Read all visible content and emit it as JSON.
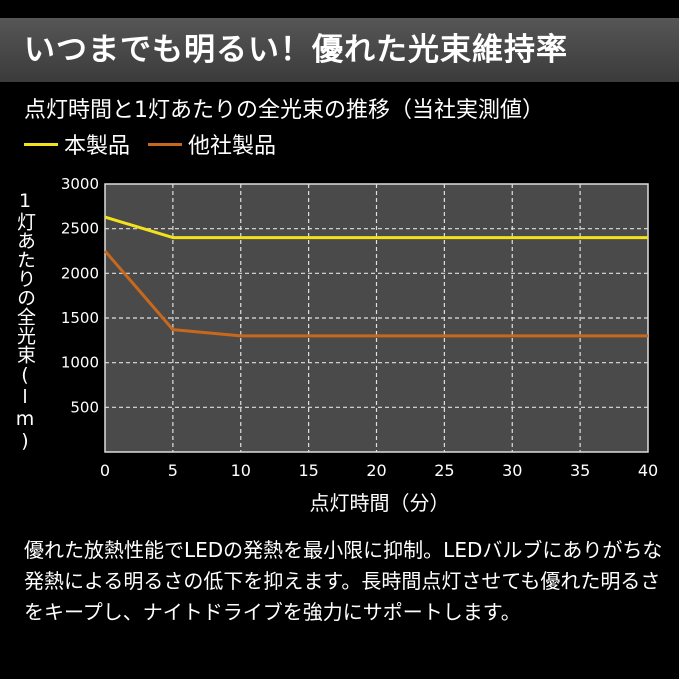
{
  "banner": {
    "title": "いつまでも明るい！優れた光束維持率"
  },
  "chart_data": {
    "type": "line",
    "title": "点灯時間と1灯あたりの全光束の推移（当社実測値）",
    "xlabel": "点灯時間（分）",
    "ylabel": "1灯あたりの全光束(lm)",
    "xlim": [
      0,
      40
    ],
    "ylim": [
      0,
      3000
    ],
    "x_ticks": [
      "0",
      "5",
      "10",
      "15",
      "20",
      "25",
      "30",
      "35",
      "40"
    ],
    "y_ticks": [
      "3000",
      "2500",
      "2000",
      "1500",
      "1000",
      "500"
    ],
    "grid": true,
    "legend_position": "top-left",
    "series": [
      {
        "name": "本製品",
        "color": "#f2e21c",
        "x": [
          0,
          5,
          10,
          20,
          30,
          40
        ],
        "values": [
          2630,
          2400,
          2400,
          2400,
          2400,
          2400
        ]
      },
      {
        "name": "他社製品",
        "color": "#c8681c",
        "x": [
          0,
          5,
          10,
          20,
          30,
          40
        ],
        "values": [
          2250,
          1370,
          1300,
          1300,
          1300,
          1300
        ]
      }
    ]
  },
  "description": "優れた放熱性能でLEDの発熱を最小限に抑制。LEDバルブにありがちな発熱による明るさの低下を抑えます。長時間点灯させても優れた明るさをキープし、ナイトドライブを強力にサポートします。"
}
